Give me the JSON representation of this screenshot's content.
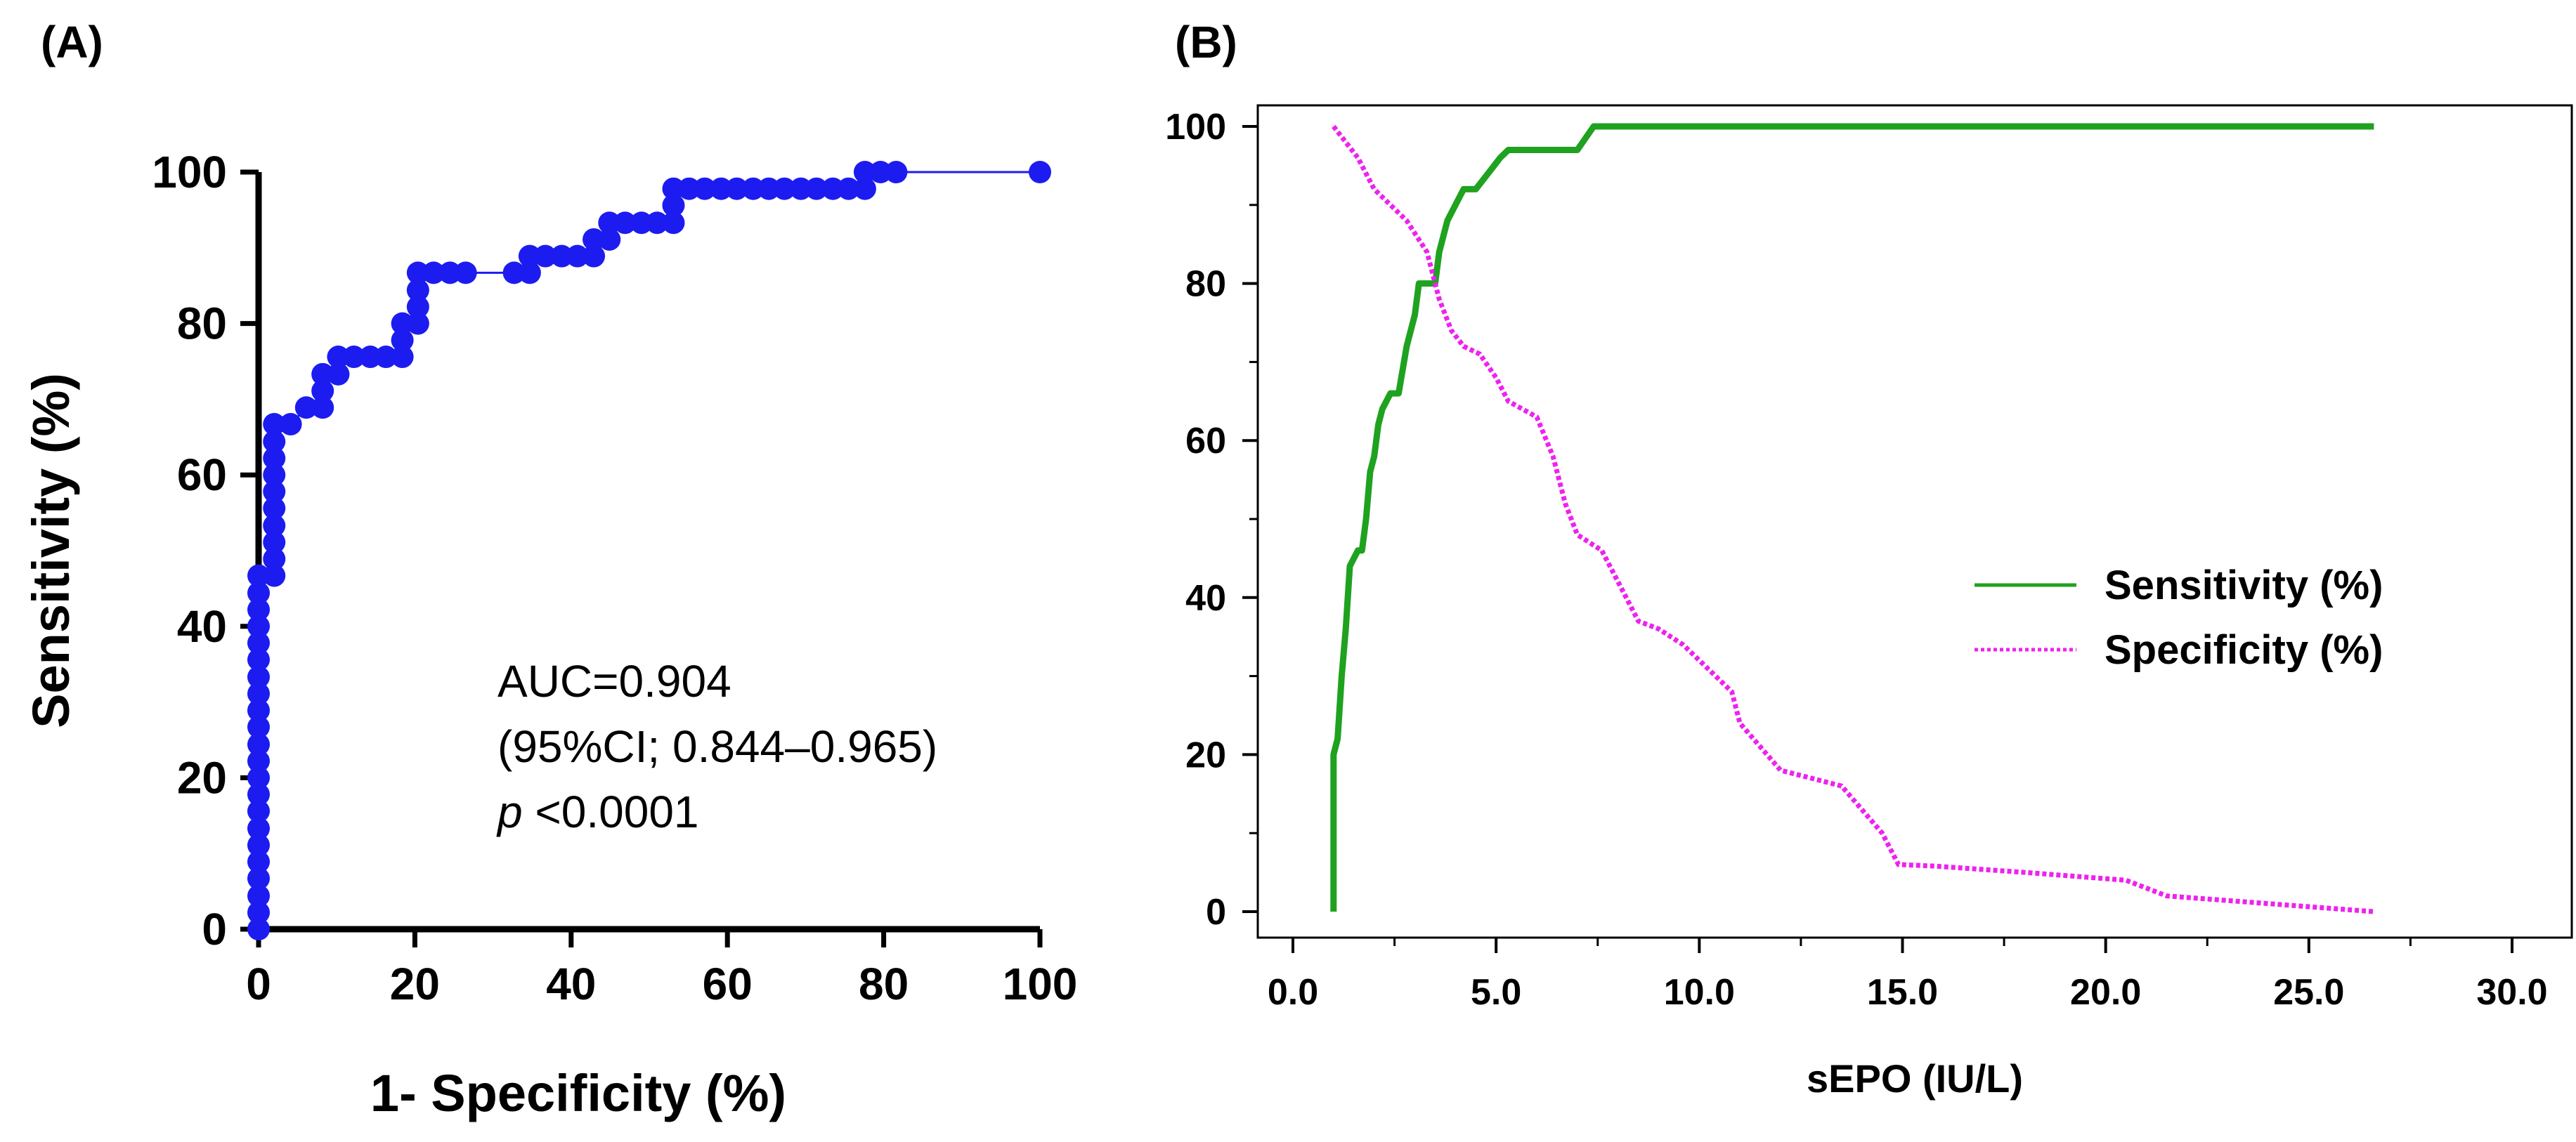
{
  "chart_data": [
    {
      "panel": "(A)",
      "type": "scatter",
      "connected": true,
      "xlabel": "1- Specificity (%)",
      "ylabel": "Sensitivity (%)",
      "xlim": [
        0,
        100
      ],
      "ylim": [
        0,
        100
      ],
      "xticks": [
        0,
        20,
        40,
        60,
        80,
        100
      ],
      "yticks": [
        0,
        20,
        40,
        60,
        80,
        100
      ],
      "color": "#1c1cf0",
      "annotation": {
        "auc": "AUC=0.904",
        "ci": "(95%CI; 0.844–0.965)",
        "p_label": "p",
        "p_value": " <0.0001"
      },
      "points": [
        [
          0,
          0
        ],
        [
          0,
          2.2
        ],
        [
          0,
          4.4
        ],
        [
          0,
          6.7
        ],
        [
          0,
          8.9
        ],
        [
          0,
          11.1
        ],
        [
          0,
          13.3
        ],
        [
          0,
          15.6
        ],
        [
          0,
          17.8
        ],
        [
          0,
          20
        ],
        [
          0,
          22.2
        ],
        [
          0,
          24.4
        ],
        [
          0,
          26.7
        ],
        [
          0,
          28.9
        ],
        [
          0,
          31.1
        ],
        [
          0,
          33.3
        ],
        [
          0,
          35.6
        ],
        [
          0,
          37.8
        ],
        [
          0,
          40
        ],
        [
          0,
          42.2
        ],
        [
          0,
          44.4
        ],
        [
          0,
          46.7
        ],
        [
          2,
          46.7
        ],
        [
          2,
          48.9
        ],
        [
          2,
          51.1
        ],
        [
          2,
          53.3
        ],
        [
          2,
          55.6
        ],
        [
          2,
          57.8
        ],
        [
          2,
          60
        ],
        [
          2,
          62.2
        ],
        [
          2,
          64.4
        ],
        [
          2,
          66.7
        ],
        [
          4.1,
          66.7
        ],
        [
          6.1,
          68.9
        ],
        [
          8.2,
          68.9
        ],
        [
          8.2,
          71.1
        ],
        [
          8.2,
          73.3
        ],
        [
          10.2,
          73.3
        ],
        [
          10.2,
          75.6
        ],
        [
          12.2,
          75.6
        ],
        [
          14.3,
          75.6
        ],
        [
          16.3,
          75.6
        ],
        [
          18.4,
          75.6
        ],
        [
          18.4,
          77.8
        ],
        [
          18.4,
          80
        ],
        [
          20.4,
          80
        ],
        [
          20.4,
          82.2
        ],
        [
          20.4,
          84.4
        ],
        [
          20.4,
          86.7
        ],
        [
          22.4,
          86.7
        ],
        [
          24.5,
          86.7
        ],
        [
          26.5,
          86.7
        ],
        [
          32.7,
          86.7
        ],
        [
          34.7,
          86.7
        ],
        [
          34.7,
          88.9
        ],
        [
          36.7,
          88.9
        ],
        [
          38.8,
          88.9
        ],
        [
          40.8,
          88.9
        ],
        [
          42.9,
          88.9
        ],
        [
          42.9,
          91.1
        ],
        [
          44.9,
          91.1
        ],
        [
          44.9,
          93.3
        ],
        [
          46.9,
          93.3
        ],
        [
          49,
          93.3
        ],
        [
          51,
          93.3
        ],
        [
          53.1,
          93.3
        ],
        [
          53.1,
          95.6
        ],
        [
          53.1,
          97.8
        ],
        [
          55.1,
          97.8
        ],
        [
          57.1,
          97.8
        ],
        [
          59.2,
          97.8
        ],
        [
          61.2,
          97.8
        ],
        [
          63.3,
          97.8
        ],
        [
          65.3,
          97.8
        ],
        [
          67.3,
          97.8
        ],
        [
          69.4,
          97.8
        ],
        [
          71.4,
          97.8
        ],
        [
          73.5,
          97.8
        ],
        [
          75.5,
          97.8
        ],
        [
          77.6,
          97.8
        ],
        [
          77.6,
          100
        ],
        [
          79.6,
          100
        ],
        [
          81.6,
          100
        ],
        [
          100,
          100
        ]
      ]
    },
    {
      "panel": "(B)",
      "type": "line",
      "xlabel": "sEPO (IU/L)",
      "ylabel": "",
      "xlim": [
        0,
        30
      ],
      "ylim": [
        0,
        100
      ],
      "xticks": [
        "0.0",
        "5.0",
        "10.0",
        "15.0",
        "20.0",
        "25.0",
        "30.0"
      ],
      "yticks": [
        "0",
        "20",
        "40",
        "60",
        "80",
        "100"
      ],
      "legend_position": "center-right",
      "series": [
        {
          "name": "Sensitivity (%)",
          "color": "#1fa21f",
          "style": "solid",
          "points": [
            [
              1.0,
              0
            ],
            [
              1.0,
              20
            ],
            [
              1.1,
              22
            ],
            [
              1.2,
              30
            ],
            [
              1.3,
              36
            ],
            [
              1.4,
              44
            ],
            [
              1.6,
              46
            ],
            [
              1.7,
              46
            ],
            [
              1.8,
              50
            ],
            [
              1.9,
              56
            ],
            [
              2.0,
              58
            ],
            [
              2.1,
              62
            ],
            [
              2.2,
              64
            ],
            [
              2.4,
              66
            ],
            [
              2.6,
              66
            ],
            [
              2.8,
              72
            ],
            [
              3.0,
              76
            ],
            [
              3.1,
              80
            ],
            [
              3.5,
              80
            ],
            [
              3.6,
              84
            ],
            [
              3.8,
              88
            ],
            [
              4.0,
              90
            ],
            [
              4.2,
              92
            ],
            [
              4.5,
              92
            ],
            [
              4.8,
              94
            ],
            [
              5.1,
              96
            ],
            [
              5.3,
              97
            ],
            [
              6.0,
              97
            ],
            [
              7.0,
              97
            ],
            [
              7.4,
              100
            ],
            [
              10,
              100
            ],
            [
              20,
              100
            ],
            [
              26.6,
              100
            ]
          ]
        },
        {
          "name": "Specificity (%)",
          "color": "#ee22ee",
          "style": "dotted",
          "points": [
            [
              1.0,
              100
            ],
            [
              1.3,
              98
            ],
            [
              1.6,
              96
            ],
            [
              2.0,
              92
            ],
            [
              2.4,
              90
            ],
            [
              2.8,
              88
            ],
            [
              3.3,
              84
            ],
            [
              3.6,
              78
            ],
            [
              3.9,
              74
            ],
            [
              4.2,
              72
            ],
            [
              4.6,
              71
            ],
            [
              5.0,
              68
            ],
            [
              5.3,
              65
            ],
            [
              6.0,
              63
            ],
            [
              6.4,
              58
            ],
            [
              6.7,
              52
            ],
            [
              7.0,
              48
            ],
            [
              7.6,
              46
            ],
            [
              8.0,
              42
            ],
            [
              8.5,
              37
            ],
            [
              9.0,
              36
            ],
            [
              9.6,
              34
            ],
            [
              10.4,
              30
            ],
            [
              10.8,
              28
            ],
            [
              11.0,
              24
            ],
            [
              12.0,
              18
            ],
            [
              13.5,
              16
            ],
            [
              14.5,
              10
            ],
            [
              14.9,
              6
            ],
            [
              15.8,
              5.8
            ],
            [
              18,
              5
            ],
            [
              20.5,
              4
            ],
            [
              21.5,
              2
            ],
            [
              26.6,
              0
            ]
          ]
        }
      ]
    }
  ]
}
